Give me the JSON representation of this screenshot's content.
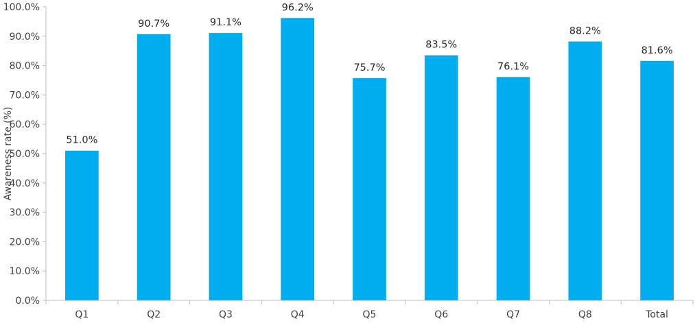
{
  "chart_data": {
    "type": "bar",
    "categories": [
      "Q1",
      "Q2",
      "Q3",
      "Q4",
      "Q5",
      "Q6",
      "Q7",
      "Q8",
      "Total"
    ],
    "values": [
      51.0,
      90.7,
      91.1,
      96.2,
      75.7,
      83.5,
      76.1,
      88.2,
      81.6
    ],
    "data_labels": [
      "51.0%",
      "90.7%",
      "91.1%",
      "96.2%",
      "75.7%",
      "83.5%",
      "76.1%",
      "88.2%",
      "81.6%"
    ],
    "title": "",
    "xlabel": "",
    "ylabel": "Awareness rate (%)",
    "ylim": [
      0,
      100
    ],
    "yticks": [
      0,
      10,
      20,
      30,
      40,
      50,
      60,
      70,
      80,
      90,
      100
    ],
    "ytick_labels": [
      "0.0%",
      "10.0%",
      "20.0%",
      "30.0%",
      "40.0%",
      "50.0%",
      "60.0%",
      "70.0%",
      "80.0%",
      "90.0%",
      "100.0%"
    ],
    "grid": false,
    "legend": "none",
    "bar_color": "#00aeef"
  }
}
